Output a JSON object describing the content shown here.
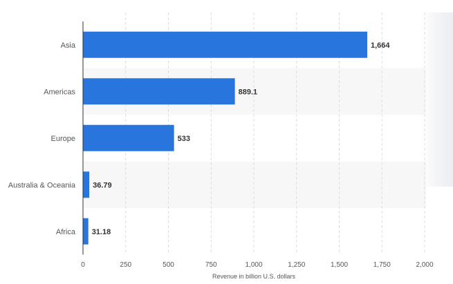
{
  "chart_data": {
    "type": "bar",
    "orientation": "horizontal",
    "categories": [
      "Asia",
      "Americas",
      "Europe",
      "Australia & Oceania",
      "Africa"
    ],
    "values": [
      1664,
      889.1,
      533,
      36.79,
      31.18
    ],
    "value_labels": [
      "1,664",
      "889.1",
      "533",
      "36.79",
      "31.18"
    ],
    "xlabel": "Revenue in billion U.S. dollars",
    "ylabel": "",
    "xlim": [
      0,
      2000
    ],
    "xticks": [
      0,
      250,
      500,
      750,
      1000,
      1250,
      1500,
      1750,
      2000
    ],
    "xtick_labels": [
      "0",
      "250",
      "500",
      "750",
      "1,000",
      "1,250",
      "1,500",
      "1,750",
      "2,000"
    ],
    "grid": true,
    "bar_color": "#2876dd",
    "band_color": "#f7f7f7",
    "gridline_color": "#dddddd",
    "axis_color": "#333333"
  }
}
